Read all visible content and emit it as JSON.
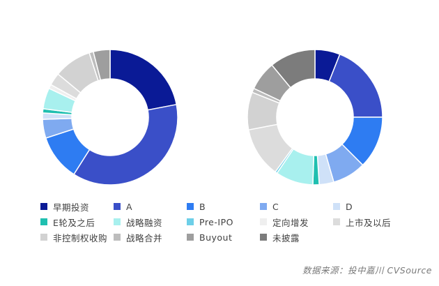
{
  "chart_data": [
    {
      "type": "pie",
      "variant": "donut",
      "series": [
        {
          "name": "早期投资",
          "value": 22.0
        },
        {
          "name": "A",
          "value": 37.0
        },
        {
          "name": "B",
          "value": 11.0
        },
        {
          "name": "C",
          "value": 4.5
        },
        {
          "name": "D",
          "value": 1.5
        },
        {
          "name": "E轮及之后",
          "value": 1.0
        },
        {
          "name": "战略融资",
          "value": 5.0
        },
        {
          "name": "Pre-IPO",
          "value": 0.0
        },
        {
          "name": "定向增发",
          "value": 1.0
        },
        {
          "name": "上市及以后",
          "value": 3.0
        },
        {
          "name": "非控制权收购",
          "value": 9.0
        },
        {
          "name": "战略合并",
          "value": 1.0
        },
        {
          "name": "Buyout",
          "value": 4.0
        },
        {
          "name": "未披露",
          "value": 0.0
        }
      ]
    },
    {
      "type": "pie",
      "variant": "donut",
      "series": [
        {
          "name": "早期投资",
          "value": 6.0
        },
        {
          "name": "A",
          "value": 19.0
        },
        {
          "name": "B",
          "value": 12.5
        },
        {
          "name": "C",
          "value": 8.0
        },
        {
          "name": "D",
          "value": 3.5
        },
        {
          "name": "E轮及之后",
          "value": 1.5
        },
        {
          "name": "战略融资",
          "value": 9.0
        },
        {
          "name": "Pre-IPO",
          "value": 0.5
        },
        {
          "name": "定向增发",
          "value": 0.0
        },
        {
          "name": "上市及以后",
          "value": 12.0
        },
        {
          "name": "非控制权收购",
          "value": 9.0
        },
        {
          "name": "战略合并",
          "value": 1.0
        },
        {
          "name": "Buyout",
          "value": 7.0
        },
        {
          "name": "未披露",
          "value": 11.0
        }
      ]
    }
  ],
  "legend": [
    {
      "label": "早期投资",
      "color": "#0a1a96"
    },
    {
      "label": "A",
      "color": "#3a4fc8"
    },
    {
      "label": "B",
      "color": "#2e7cf2"
    },
    {
      "label": "C",
      "color": "#7faaf0"
    },
    {
      "label": "D",
      "color": "#cfe1f8"
    },
    {
      "label": "E轮及之后",
      "color": "#1fbfb0"
    },
    {
      "label": "战略融资",
      "color": "#a8f0ee"
    },
    {
      "label": "Pre-IPO",
      "color": "#6dcfe8"
    },
    {
      "label": "定向增发",
      "color": "#efefef"
    },
    {
      "label": "上市及以后",
      "color": "#dcdcdc"
    },
    {
      "label": "非控制权收购",
      "color": "#d2d2d2"
    },
    {
      "label": "战略合并",
      "color": "#bdbdbd"
    },
    {
      "label": "Buyout",
      "color": "#9e9e9e"
    },
    {
      "label": "未披露",
      "color": "#7c7c7c"
    }
  ],
  "source": "数据来源：投中嘉川 CVSource"
}
